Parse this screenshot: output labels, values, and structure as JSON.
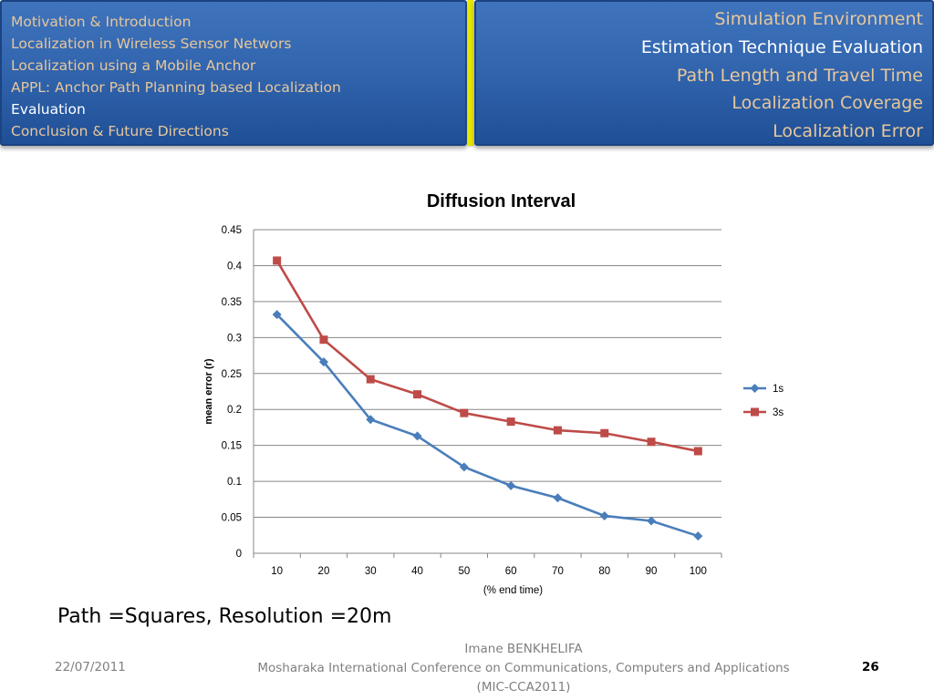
{
  "nav": {
    "left_items": [
      {
        "label": "Motivation & Introduction",
        "active": false
      },
      {
        "label": "Localization in Wireless Sensor Networs",
        "active": false
      },
      {
        "label": "Localization using a Mobile Anchor",
        "active": false
      },
      {
        "label": "APPL: Anchor Path Planning based Localization",
        "active": false
      },
      {
        "label": "Evaluation",
        "active": true
      },
      {
        "label": "Conclusion & Future Directions",
        "active": false
      }
    ],
    "right_items": [
      {
        "label": "Simulation Environment",
        "active": false
      },
      {
        "label": "Estimation Technique Evaluation",
        "active": true
      },
      {
        "label": "Path Length and Travel Time",
        "active": false
      },
      {
        "label": "Localization Coverage",
        "active": false
      },
      {
        "label": "Localization Error",
        "active": false
      }
    ],
    "separator_color": "#e6e600",
    "active_color": "#ffffff",
    "inactive_color": "#e8c79a"
  },
  "chart_data": {
    "type": "line",
    "title": "Diffusion Interval",
    "xlabel": "(% end time)",
    "ylabel": "mean error  (r)",
    "categories": [
      "10",
      "20",
      "30",
      "40",
      "50",
      "60",
      "70",
      "80",
      "90",
      "100"
    ],
    "ylim": [
      0,
      0.45
    ],
    "yticks": [
      "0",
      "0.05",
      "0.1",
      "0.15",
      "0.2",
      "0.25",
      "0.3",
      "0.35",
      "0.4",
      "0.45"
    ],
    "grid": true,
    "legend_position": "right",
    "series": [
      {
        "name": "1s",
        "color": "#4a7ebb",
        "marker": "diamond",
        "values": [
          0.332,
          0.266,
          0.186,
          0.163,
          0.12,
          0.094,
          0.077,
          0.052,
          0.045,
          0.024
        ]
      },
      {
        "name": "3s",
        "color": "#be4b48",
        "marker": "square",
        "values": [
          0.407,
          0.297,
          0.242,
          0.221,
          0.195,
          0.183,
          0.171,
          0.167,
          0.155,
          0.142
        ]
      }
    ]
  },
  "caption": "Path =Squares, Resolution =20m",
  "footer": {
    "date": "22/07/2011",
    "author": "Imane BENKHELIFA",
    "conference": "Mosharaka International Conference on Communications, Computers and Applications",
    "conference_short": "(MIC-CCA2011)",
    "page": "26"
  }
}
